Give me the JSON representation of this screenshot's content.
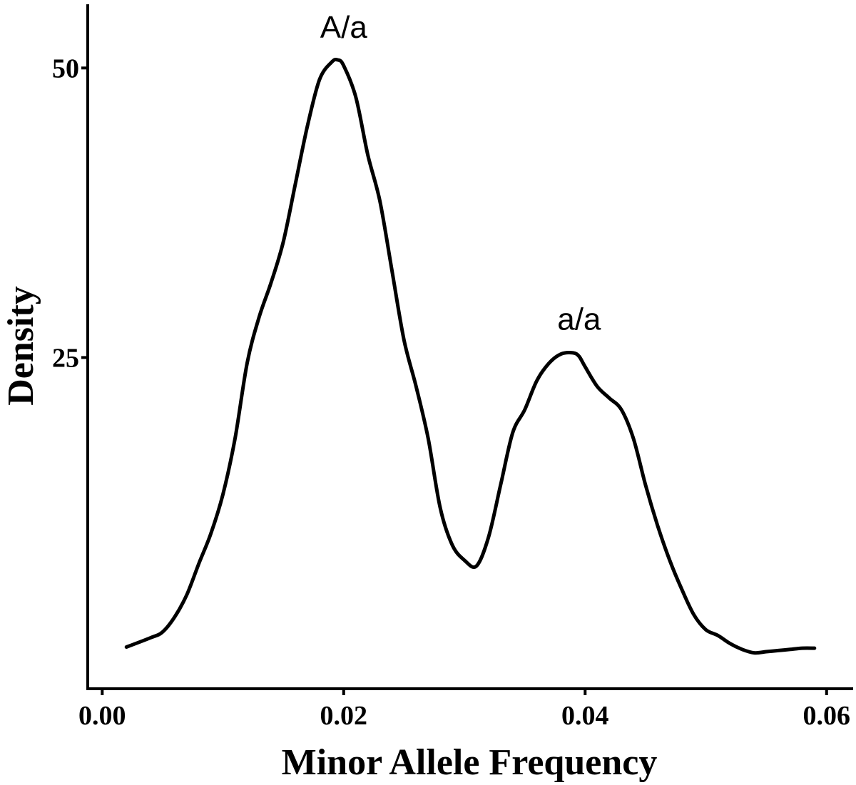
{
  "chart_data": {
    "type": "line",
    "xlabel": "Minor Allele Frequency",
    "ylabel": "Density",
    "xlim": [
      -0.0012,
      0.0622
    ],
    "ylim": [
      -3.6,
      55.5
    ],
    "x_ticks": [
      {
        "value": 0.0,
        "label": "0.00"
      },
      {
        "value": 0.02,
        "label": "0.02"
      },
      {
        "value": 0.04,
        "label": "0.04"
      },
      {
        "value": 0.06,
        "label": "0.06"
      }
    ],
    "y_ticks": [
      {
        "value": 25,
        "label": "25"
      },
      {
        "value": 50,
        "label": "50"
      }
    ],
    "grid": false,
    "line_color": "#000000",
    "series": [
      {
        "x": [
          0.002,
          0.004,
          0.005,
          0.006,
          0.007,
          0.008,
          0.009,
          0.01,
          0.011,
          0.012,
          0.013,
          0.014,
          0.015,
          0.016,
          0.017,
          0.018,
          0.019,
          0.0195,
          0.02,
          0.021,
          0.022,
          0.023,
          0.024,
          0.025,
          0.026,
          0.027,
          0.028,
          0.029,
          0.03,
          0.031,
          0.032,
          0.033,
          0.034,
          0.035,
          0.036,
          0.037,
          0.038,
          0.039,
          0.0395,
          0.04,
          0.041,
          0.042,
          0.043,
          0.044,
          0.045,
          0.046,
          0.047,
          0.048,
          0.049,
          0.05,
          0.051,
          0.052,
          0.053,
          0.054,
          0.055,
          0.056,
          0.057,
          0.058,
          0.059
        ],
        "y": [
          0.0,
          0.8,
          1.3,
          2.6,
          4.5,
          7.2,
          9.8,
          13.2,
          18.0,
          24.5,
          28.5,
          31.5,
          35.0,
          40.0,
          45.0,
          49.0,
          50.5,
          50.7,
          50.2,
          47.5,
          42.5,
          38.5,
          32.5,
          26.5,
          22.5,
          18.0,
          12.0,
          8.8,
          7.5,
          7.0,
          9.5,
          14.0,
          18.5,
          20.5,
          23.0,
          24.5,
          25.3,
          25.4,
          25.1,
          24.2,
          22.5,
          21.5,
          20.5,
          18.0,
          14.0,
          10.5,
          7.5,
          5.0,
          2.8,
          1.5,
          1.0,
          0.3,
          -0.2,
          -0.5,
          -0.4,
          -0.3,
          -0.2,
          -0.1,
          -0.1
        ]
      }
    ],
    "annotations": [
      {
        "text": "A/a",
        "x": 0.02,
        "y": 52.6
      },
      {
        "text": "a/a",
        "x": 0.0395,
        "y": 27.4
      }
    ]
  }
}
